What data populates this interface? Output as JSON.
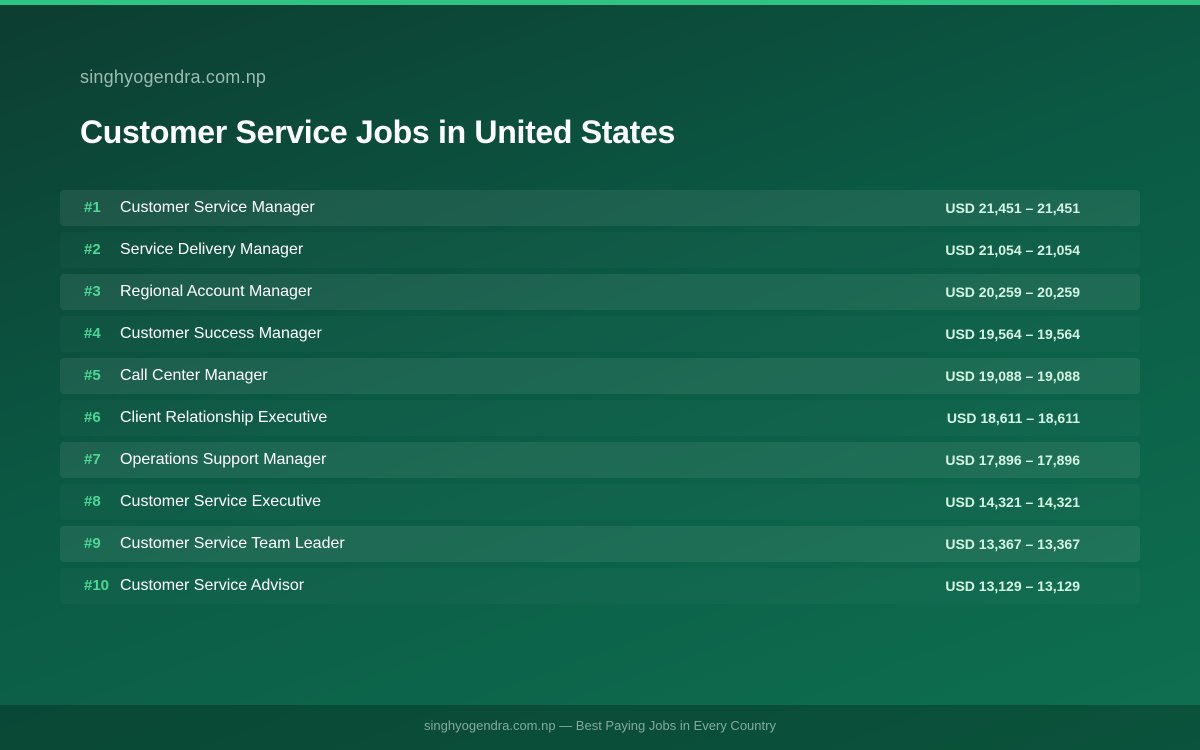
{
  "site_name": "singhyogendra.com.np",
  "page_title": "Customer Service Jobs in United States",
  "colors": {
    "accent_bar": "#2fc486",
    "rank": "#4cd894",
    "background": "#0b5a44"
  },
  "jobs": [
    {
      "rank": "#1",
      "title": "Customer Service Manager",
      "salary": "USD 21,451 – 21,451"
    },
    {
      "rank": "#2",
      "title": "Service Delivery Manager",
      "salary": "USD 21,054 – 21,054"
    },
    {
      "rank": "#3",
      "title": "Regional Account Manager",
      "salary": "USD 20,259 – 20,259"
    },
    {
      "rank": "#4",
      "title": "Customer Success Manager",
      "salary": "USD 19,564 – 19,564"
    },
    {
      "rank": "#5",
      "title": "Call Center Manager",
      "salary": "USD 19,088 – 19,088"
    },
    {
      "rank": "#6",
      "title": "Client Relationship Executive",
      "salary": "USD 18,611 – 18,611"
    },
    {
      "rank": "#7",
      "title": "Operations Support Manager",
      "salary": "USD 17,896 – 17,896"
    },
    {
      "rank": "#8",
      "title": "Customer Service Executive",
      "salary": "USD 14,321 – 14,321"
    },
    {
      "rank": "#9",
      "title": "Customer Service Team Leader",
      "salary": "USD 13,367 – 13,367"
    },
    {
      "rank": "#10",
      "title": "Customer Service Advisor",
      "salary": "USD 13,129 – 13,129"
    }
  ],
  "footer": {
    "text": "singhyogendra.com.np — Best Paying Jobs in Every Country"
  }
}
